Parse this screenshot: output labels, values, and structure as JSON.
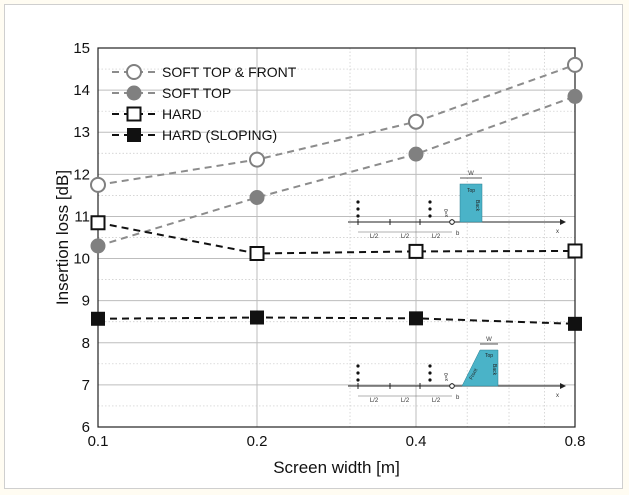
{
  "chart_data": {
    "type": "line",
    "xlabel": "Screen width [m]",
    "ylabel": "Insertion loss [dB]",
    "x_scale": "log2",
    "xlim": [
      0.1,
      0.8
    ],
    "ylim": [
      6,
      15
    ],
    "x_ticks": [
      "0.1",
      "0.2",
      "0.4",
      "0.8"
    ],
    "y_ticks": [
      "6",
      "7",
      "8",
      "9",
      "10",
      "11",
      "12",
      "13",
      "14",
      "15"
    ],
    "grid": true,
    "legend_position": "top-left",
    "x": [
      0.1,
      0.2,
      0.4,
      0.8
    ],
    "series": [
      {
        "name": "SOFT TOP & FRONT",
        "values": [
          11.75,
          12.35,
          13.25,
          14.6
        ],
        "marker": "open-circle",
        "color": "#808080",
        "line_color": "#8c8c8c"
      },
      {
        "name": "SOFT TOP",
        "values": [
          10.3,
          11.45,
          12.48,
          13.85
        ],
        "marker": "filled-circle",
        "color": "#808080",
        "line_color": "#8c8c8c"
      },
      {
        "name": "HARD",
        "values": [
          10.85,
          10.12,
          10.17,
          10.18
        ],
        "marker": "open-square",
        "color": "#111111",
        "line_color": "#111111"
      },
      {
        "name": "HARD (SLOPING)",
        "values": [
          8.57,
          8.6,
          8.58,
          8.45
        ],
        "marker": "filled-square",
        "color": "#111111",
        "line_color": "#111111"
      }
    ],
    "insets": [
      {
        "labels": {
          "w": "W",
          "top": "Top",
          "back": "Back",
          "x0": "x=0",
          "b": "b",
          "x": "x",
          "segments": [
            "L/2",
            "L/2",
            "L/2"
          ]
        },
        "fill": "#4ab3c8"
      },
      {
        "labels": {
          "w": "W",
          "top": "Top",
          "back": "Back",
          "front": "Front",
          "x0": "x=0",
          "b": "b",
          "x": "x",
          "segments": [
            "L/2",
            "L/2",
            "L/2"
          ]
        },
        "fill": "#4ab3c8"
      }
    ]
  }
}
